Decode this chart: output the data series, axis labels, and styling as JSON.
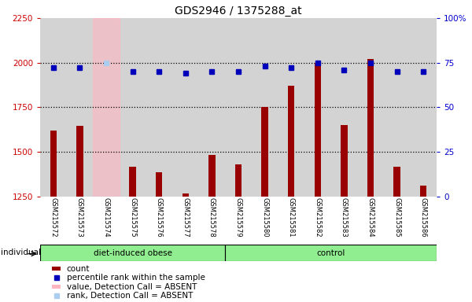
{
  "title": "GDS2946 / 1375288_at",
  "samples": [
    "GSM215572",
    "GSM215573",
    "GSM215574",
    "GSM215575",
    "GSM215576",
    "GSM215577",
    "GSM215578",
    "GSM215579",
    "GSM215580",
    "GSM215581",
    "GSM215582",
    "GSM215583",
    "GSM215584",
    "GSM215585",
    "GSM215586"
  ],
  "counts": [
    1620,
    1645,
    1250,
    1415,
    1385,
    1265,
    1480,
    1430,
    1750,
    1870,
    2000,
    1650,
    2020,
    1415,
    1310
  ],
  "percentile_ranks": [
    72,
    72,
    75,
    70,
    70,
    69,
    70,
    70,
    73,
    72,
    75,
    71,
    75,
    70,
    70
  ],
  "absent_idx": [
    2
  ],
  "group_labels": [
    "diet-induced obese",
    "control"
  ],
  "group_split": 7,
  "ylim_left": [
    1250,
    2250
  ],
  "ylim_right": [
    0,
    100
  ],
  "yticks_left": [
    1250,
    1500,
    1750,
    2000,
    2250
  ],
  "yticks_right": [
    0,
    25,
    50,
    75,
    100
  ],
  "bar_color": "#990000",
  "dot_color": "#0000bb",
  "absent_bar_color": "#ffb6c1",
  "absent_dot_color": "#aaccee",
  "cell_bg_color": "#d3d3d3",
  "plot_bg": "#ffffff",
  "group_bg": "#90ee90",
  "left_tick_color": "#cc0000",
  "right_tick_color": "#0000cc",
  "dotted_line_values": [
    1500,
    1750,
    2000
  ],
  "legend_items": [
    {
      "type": "rect",
      "color": "#990000",
      "label": "count"
    },
    {
      "type": "square",
      "color": "#0000bb",
      "label": "percentile rank within the sample"
    },
    {
      "type": "rect",
      "color": "#ffb6c1",
      "label": "value, Detection Call = ABSENT"
    },
    {
      "type": "square",
      "color": "#aaccee",
      "label": "rank, Detection Call = ABSENT"
    }
  ]
}
